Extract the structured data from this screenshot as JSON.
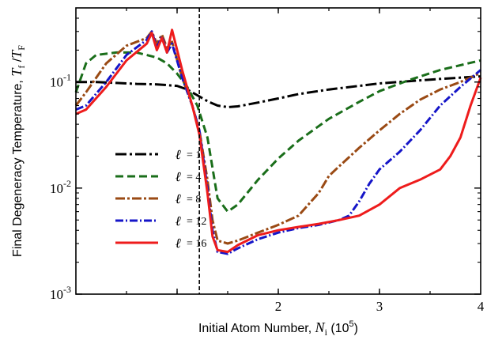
{
  "chart_data": {
    "type": "line",
    "ylabel": "Final Degeneracy Temperature, T_f / T_F",
    "ylabel_parts": {
      "prefix": "Final Degeneracy Temperature, ",
      "var": "T",
      "sub1": "f",
      "slash": " /",
      "var2": "T",
      "sub2": "F"
    },
    "xlabel_parts": {
      "prefix": "Initial Atom Number, ",
      "var": "N",
      "sub": "i",
      "suffix": "  (10",
      "exp": "5",
      "close": ")"
    },
    "x_range": [
      0,
      4
    ],
    "y_range": [
      0.001,
      0.5
    ],
    "y_scale": "log",
    "x_ticks": [
      {
        "v": 2,
        "label": "2"
      },
      {
        "v": 3,
        "label": "3"
      },
      {
        "v": 4,
        "label": "4"
      }
    ],
    "y_ticks": [
      {
        "v": 0.1,
        "base": "10",
        "exp": "-1"
      },
      {
        "v": 0.01,
        "base": "10",
        "exp": "-2"
      },
      {
        "v": 0.001,
        "base": "10",
        "exp": "-3"
      }
    ],
    "vline_x": 1.22,
    "legend_position": "center-left",
    "series": [
      {
        "name": "ℓ = 1",
        "ell": "ℓ",
        "label": "=  1",
        "color": "#000000",
        "dash": "14,4,3,4",
        "x": [
          0.0,
          0.2,
          0.4,
          0.6,
          0.8,
          1.0,
          1.1,
          1.2,
          1.3,
          1.4,
          1.5,
          1.6,
          1.8,
          2.0,
          2.2,
          2.5,
          2.8,
          3.0,
          3.3,
          3.6,
          4.0
        ],
        "y": [
          0.1,
          0.1,
          0.098,
          0.096,
          0.095,
          0.092,
          0.085,
          0.075,
          0.066,
          0.06,
          0.058,
          0.059,
          0.064,
          0.07,
          0.077,
          0.085,
          0.092,
          0.097,
          0.102,
          0.107,
          0.113
        ]
      },
      {
        "name": "ℓ = 4",
        "ell": "ℓ",
        "label": "=  4",
        "color": "#1a6e1a",
        "dash": "10,5",
        "x": [
          0.0,
          0.1,
          0.2,
          0.4,
          0.6,
          0.8,
          0.9,
          1.0,
          1.1,
          1.2,
          1.3,
          1.4,
          1.5,
          1.6,
          1.8,
          2.0,
          2.2,
          2.5,
          2.8,
          3.0,
          3.3,
          3.6,
          4.0
        ],
        "y": [
          0.08,
          0.15,
          0.18,
          0.19,
          0.19,
          0.17,
          0.15,
          0.12,
          0.09,
          0.06,
          0.03,
          0.008,
          0.006,
          0.007,
          0.012,
          0.019,
          0.028,
          0.045,
          0.065,
          0.082,
          0.105,
          0.13,
          0.16
        ]
      },
      {
        "name": "ℓ = 8",
        "ell": "ℓ",
        "label": "=  8",
        "color": "#9a4a14",
        "dash": "12,3,3,3",
        "x": [
          0.0,
          0.1,
          0.3,
          0.5,
          0.7,
          0.75,
          0.8,
          0.85,
          0.9,
          0.95,
          1.05,
          1.15,
          1.22,
          1.3,
          1.35,
          1.4,
          1.5,
          1.6,
          1.8,
          2.0,
          2.2,
          2.4,
          2.5,
          2.6,
          2.8,
          3.0,
          3.2,
          3.4,
          3.6,
          3.8,
          4.0
        ],
        "y": [
          0.06,
          0.08,
          0.15,
          0.22,
          0.26,
          0.3,
          0.23,
          0.28,
          0.21,
          0.24,
          0.11,
          0.06,
          0.035,
          0.012,
          0.005,
          0.0032,
          0.003,
          0.0032,
          0.0038,
          0.0045,
          0.0055,
          0.009,
          0.013,
          0.016,
          0.024,
          0.035,
          0.05,
          0.068,
          0.085,
          0.1,
          0.122
        ]
      },
      {
        "name": "ℓ = 12",
        "ell": "ℓ",
        "label": "= 12",
        "color": "#1515c8",
        "dash": "10,3,2,3",
        "x": [
          0.0,
          0.1,
          0.3,
          0.5,
          0.7,
          0.75,
          0.8,
          0.85,
          0.9,
          0.95,
          1.05,
          1.15,
          1.22,
          1.3,
          1.35,
          1.4,
          1.5,
          1.6,
          1.8,
          2.0,
          2.2,
          2.4,
          2.6,
          2.7,
          2.8,
          2.9,
          3.0,
          3.2,
          3.4,
          3.6,
          3.8,
          4.0
        ],
        "y": [
          0.055,
          0.06,
          0.1,
          0.18,
          0.25,
          0.3,
          0.21,
          0.27,
          0.19,
          0.23,
          0.11,
          0.06,
          0.035,
          0.01,
          0.004,
          0.0025,
          0.0024,
          0.0027,
          0.0033,
          0.0038,
          0.0042,
          0.0045,
          0.005,
          0.0055,
          0.0075,
          0.011,
          0.015,
          0.022,
          0.035,
          0.06,
          0.09,
          0.13
        ]
      },
      {
        "name": "ℓ = 16",
        "ell": "ℓ",
        "label": "= 16",
        "color": "#ee1c1c",
        "dash": "",
        "x": [
          0.0,
          0.1,
          0.3,
          0.5,
          0.7,
          0.75,
          0.8,
          0.85,
          0.9,
          0.95,
          1.05,
          1.15,
          1.22,
          1.3,
          1.35,
          1.4,
          1.5,
          1.6,
          1.8,
          2.0,
          2.2,
          2.4,
          2.6,
          2.8,
          3.0,
          3.2,
          3.4,
          3.6,
          3.7,
          3.8,
          3.9,
          4.0
        ],
        "y": [
          0.05,
          0.055,
          0.09,
          0.16,
          0.23,
          0.29,
          0.2,
          0.26,
          0.19,
          0.31,
          0.13,
          0.06,
          0.032,
          0.009,
          0.0035,
          0.0026,
          0.0025,
          0.0029,
          0.0036,
          0.004,
          0.0043,
          0.0046,
          0.005,
          0.0055,
          0.007,
          0.01,
          0.012,
          0.015,
          0.02,
          0.03,
          0.06,
          0.11
        ]
      }
    ]
  }
}
